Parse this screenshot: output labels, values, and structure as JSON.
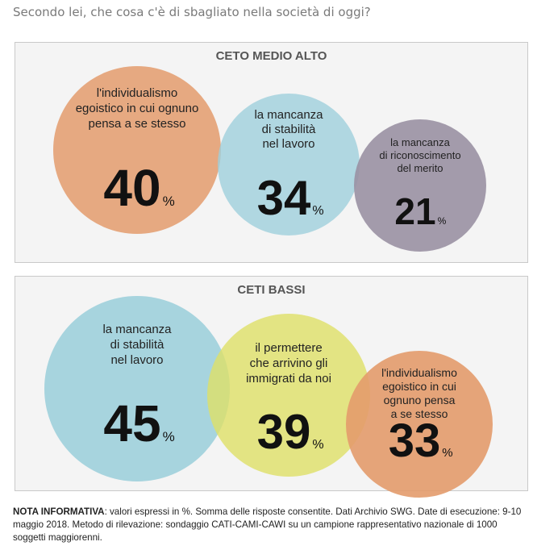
{
  "question": "Secondo lei, che cosa c'è di sbagliato nella società di oggi?",
  "chart_data": [
    {
      "type": "bubble",
      "title": "CETO MEDIO ALTO",
      "unit": "%",
      "categories": [
        "l'individualismo egoistico in cui ognuno pensa a se stesso",
        "la mancanza di stabilità nel lavoro",
        "la mancanza di riconoscimento del merito"
      ],
      "label_lines": [
        [
          "l'individualismo",
          "egoistico in cui ognuno",
          "pensa a se stesso"
        ],
        [
          "la mancanza",
          "di stabilità",
          "nel lavoro"
        ],
        [
          "la mancanza",
          "di riconoscimento",
          "del merito"
        ]
      ],
      "values": [
        40,
        34,
        21
      ],
      "colors": [
        "#e39b6c",
        "#9fd0dc",
        "#9a91a3"
      ]
    },
    {
      "type": "bubble",
      "title": "CETI BASSI",
      "unit": "%",
      "categories": [
        "la mancanza di stabilità nel lavoro",
        "il permettere che arrivino gli immigrati da noi",
        "l'individualismo egoistico in cui ognuno pensa a se stesso"
      ],
      "label_lines": [
        [
          "la mancanza",
          "di stabilità",
          "nel lavoro"
        ],
        [
          "il permettere",
          "che arrivino gli",
          "immigrati da noi"
        ],
        [
          "l'individualismo",
          "egoistico in cui",
          "ognuno pensa",
          "a se stesso"
        ]
      ],
      "values": [
        45,
        39,
        33
      ],
      "colors": [
        "#9fd0dc",
        "#dfe067",
        "#e39b6c"
      ]
    }
  ],
  "note": {
    "label": "NOTA INFORMATIVA",
    "text": ": valori espressi in %. Somma delle risposte consentite. Dati Archivio SWG. Date di esecuzione: 9-10 maggio 2018. Metodo di rilevazione: sondaggio CATI-CAMI-CAWI su un campione rappresentativo nazionale di 1000 soggetti maggiorenni."
  }
}
